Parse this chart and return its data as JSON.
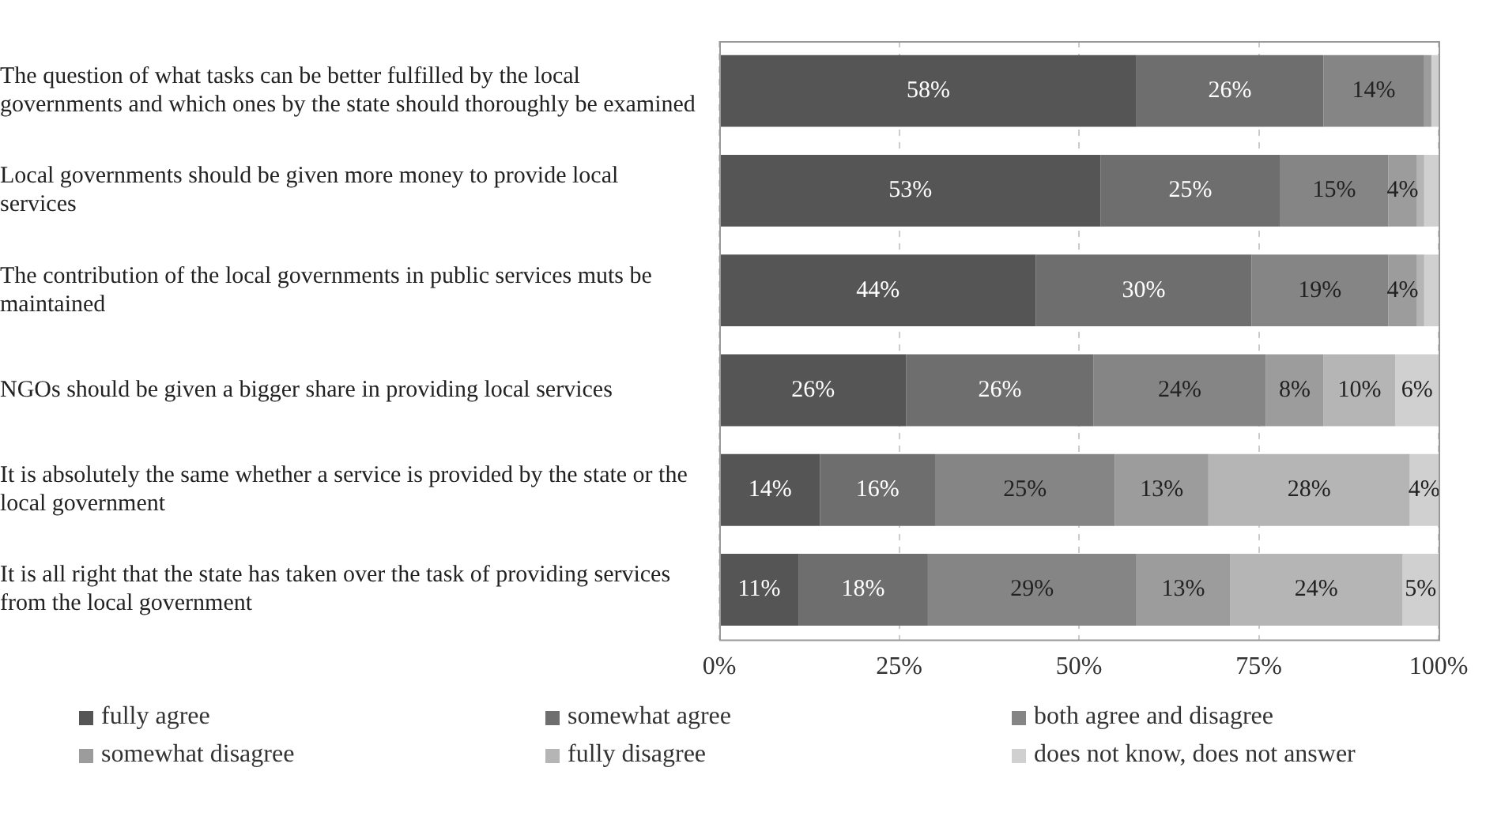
{
  "chart_data": {
    "type": "bar",
    "orientation": "horizontal",
    "stacked": true,
    "categories": [
      "The question of what tasks can be better fulfilled by the local governments and which ones by the state should thoroughly be examined",
      "Local governments should be given more money to provide local services",
      "The contribution of the local governments in public services muts be maintained",
      "NGOs should be given a bigger share in providing local services",
      "It is absolutely the same whether a service is provided by the state or the local government",
      "It is all right that the state has taken over the task of providing services from the local government"
    ],
    "series": [
      {
        "name": "fully agree",
        "color": "#555555",
        "values": [
          58,
          53,
          44,
          26,
          14,
          11
        ],
        "value_labels": [
          "58%",
          "53%",
          "44%",
          "26%",
          "14%",
          "11%"
        ]
      },
      {
        "name": "somewhat agree",
        "color": "#6e6e6e",
        "values": [
          26,
          25,
          30,
          26,
          16,
          18
        ],
        "value_labels": [
          "26%",
          "25%",
          "30%",
          "26%",
          "16%",
          "18%"
        ]
      },
      {
        "name": "both agree and disagree",
        "color": "#858585",
        "values": [
          14,
          15,
          19,
          24,
          25,
          29
        ],
        "value_labels": [
          "14%",
          "15%",
          "19%",
          "24%",
          "25%",
          "29%"
        ]
      },
      {
        "name": "somewhat disagree",
        "color": "#9c9c9c",
        "values": [
          1,
          4,
          4,
          8,
          13,
          13
        ],
        "value_labels": [
          null,
          "4%",
          "4%",
          "8%",
          "13%",
          "13%"
        ]
      },
      {
        "name": "fully disagree",
        "color": "#b5b5b5",
        "values": [
          0,
          1,
          1,
          10,
          28,
          24
        ],
        "value_labels": [
          null,
          null,
          null,
          "10%",
          "28%",
          "24%"
        ]
      },
      {
        "name": "does not know, does not answer",
        "color": "#d0d0d0",
        "values": [
          1,
          2,
          2,
          6,
          4,
          5
        ],
        "value_labels": [
          null,
          null,
          null,
          "6%",
          "4%",
          "5%"
        ]
      }
    ],
    "xlim": [
      0,
      100
    ],
    "xticks": [
      {
        "value": 0,
        "label": "0%"
      },
      {
        "value": 25,
        "label": "25%"
      },
      {
        "value": 50,
        "label": "50%"
      },
      {
        "value": 75,
        "label": "75%"
      },
      {
        "value": 100,
        "label": "100%"
      }
    ],
    "grid": "x",
    "legend": "bottom"
  }
}
